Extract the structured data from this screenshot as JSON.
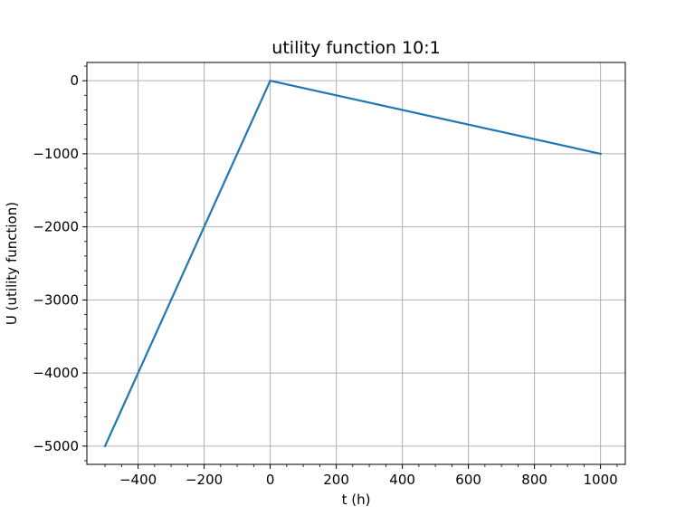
{
  "chart_data": {
    "type": "line",
    "title": "utility function 10:1",
    "xlabel": "t (h)",
    "ylabel": "U (utility function)",
    "xlim": [
      -555,
      1075
    ],
    "ylim": [
      -5250,
      250
    ],
    "grid": true,
    "x_ticks": [
      -400,
      -200,
      0,
      200,
      400,
      600,
      800,
      1000
    ],
    "x_tick_labels": [
      "−400",
      "−200",
      "0",
      "200",
      "400",
      "600",
      "800",
      "1000"
    ],
    "y_ticks": [
      0,
      -1000,
      -2000,
      -3000,
      -4000,
      -5000
    ],
    "y_tick_labels": [
      "0",
      "−1000",
      "−2000",
      "−3000",
      "−4000",
      "−5000"
    ],
    "series": [
      {
        "color": "#1f77b4",
        "x": [
          -500,
          0,
          1000
        ],
        "y": [
          -5000,
          0,
          -1000
        ]
      }
    ]
  }
}
